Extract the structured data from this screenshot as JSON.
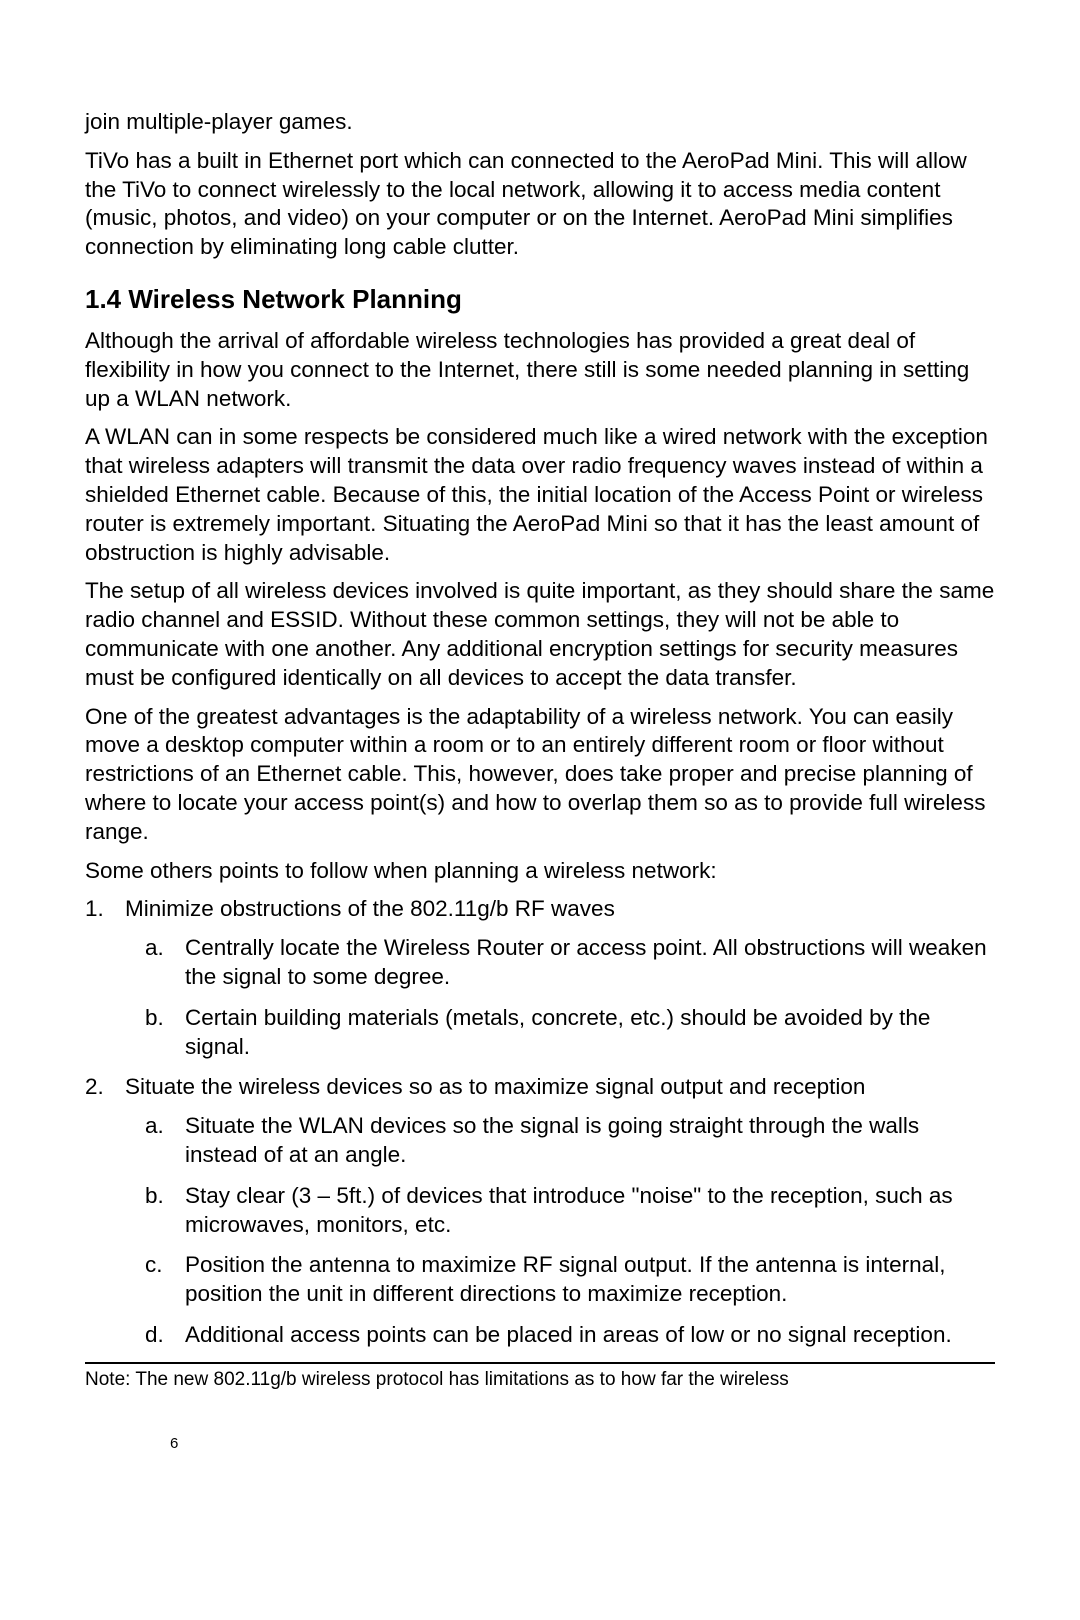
{
  "paragraphs": {
    "p1": "join multiple-player games.",
    "p2": "TiVo has a built in Ethernet port which can connected to the AeroPad Mini. This will allow the TiVo to connect wirelessly to the local network, allowing it to access media content (music, photos, and video) on your computer or on the Internet. AeroPad Mini simplifies connection by eliminating long cable clutter.",
    "heading": "1.4 Wireless Network Planning",
    "p3": "Although the arrival of affordable wireless technologies has provided a great deal of flexibility in how you connect to the Internet, there still is some needed planning in setting up a WLAN network.",
    "p4": "A WLAN can in some respects be considered much like a wired network with the exception that wireless adapters will transmit the data over radio frequency waves instead of within a shielded Ethernet cable. Because of this, the initial location of the Access Point or wireless router is extremely important. Situating the AeroPad Mini so that it has the least amount of obstruction is highly advisable.",
    "p5": "The setup of all wireless devices involved is quite important, as they should share the same radio channel and ESSID. Without these common settings, they will not be able to communicate with one another. Any additional encryption settings for security measures must be configured identically on all devices to accept the data transfer.",
    "p6": "One of the greatest advantages is the adaptability of a wireless network. You can easily move a desktop computer within a room or to an entirely different room or floor without restrictions of an Ethernet cable. This, however, does take proper and precise planning of where to locate your access point(s) and how to overlap them so as to provide full wireless range.",
    "p7": "Some others points to follow when planning a wireless network:"
  },
  "list": {
    "item1": {
      "num": "1.",
      "text": "Minimize obstructions of the 802.11g/b RF waves",
      "sub": {
        "a": {
          "letter": "a.",
          "text": "Centrally locate the Wireless Router or access point. All obstructions will weaken the signal to some degree."
        },
        "b": {
          "letter": "b.",
          "text": "Certain building materials (metals, concrete, etc.) should be avoided by the signal."
        }
      }
    },
    "item2": {
      "num": "2.",
      "text": "Situate the wireless devices so as to maximize signal output and reception",
      "sub": {
        "a": {
          "letter": "a.",
          "text": "Situate the WLAN devices so the signal is going straight through the walls instead of at an angle."
        },
        "b": {
          "letter": "b.",
          "text": "Stay clear (3 – 5ft.) of devices that introduce \"noise\" to the reception, such as microwaves, monitors, etc."
        },
        "c": {
          "letter": "c.",
          "text": "Position the antenna to maximize RF signal output. If the antenna is internal, position the unit in different directions to maximize reception."
        },
        "d": {
          "letter": "d.",
          "text": "Additional access points can be placed in areas of low or no signal reception."
        }
      }
    }
  },
  "footnote": "Note: The new 802.11g/b wireless protocol has limitations as to how far the wireless",
  "page_number": "6"
}
